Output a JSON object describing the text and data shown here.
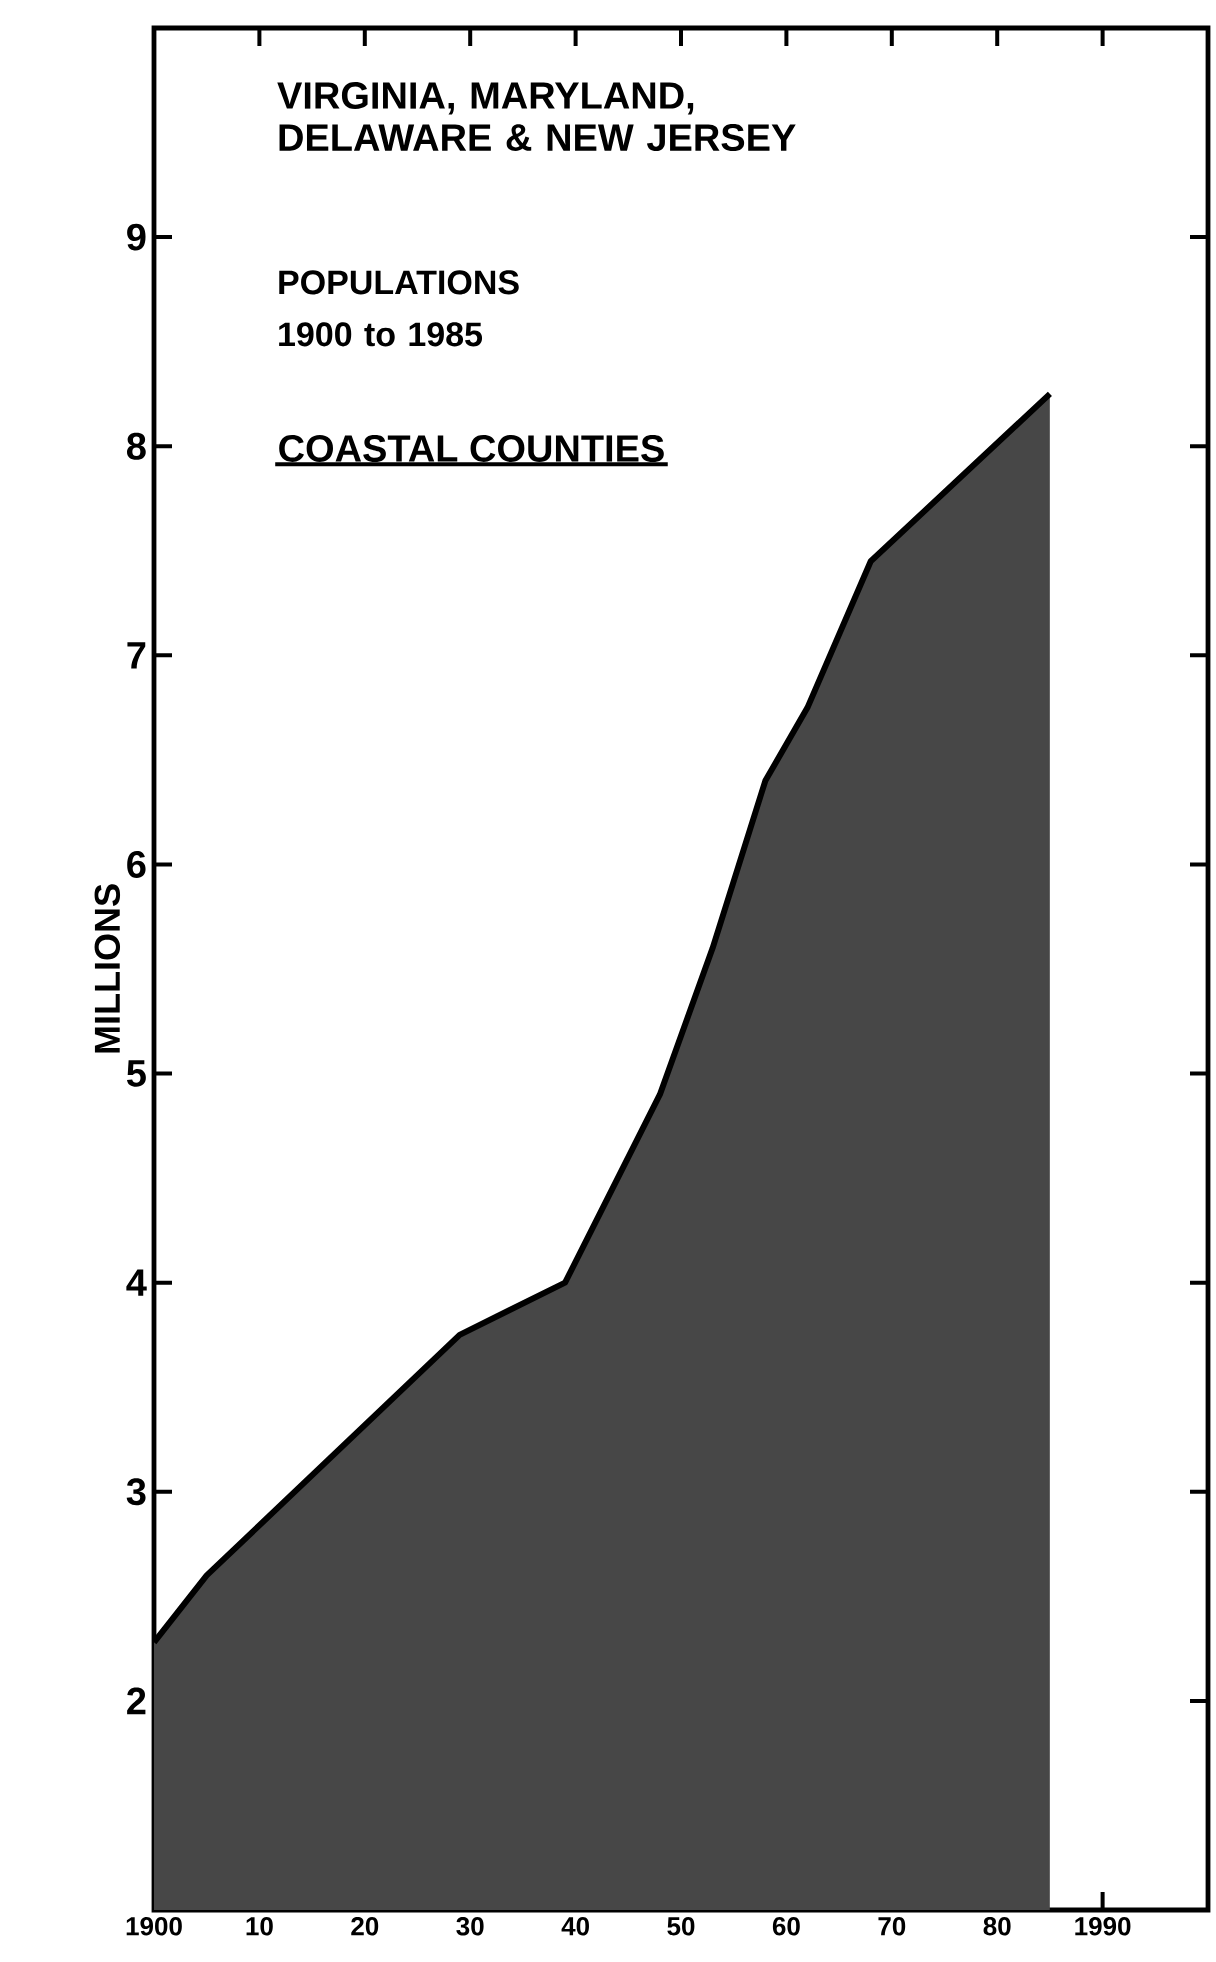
{
  "chart_data": {
    "type": "area",
    "title": "VIRGINIA, MARYLAND, DELAWARE & NEW JERSEY",
    "subtitle": "POPULATIONS 1900 to 1985",
    "annotations": [
      "COASTAL COUNTIES"
    ],
    "ylabel": "MILLIONS",
    "x": [
      1900,
      1905,
      1929,
      1939,
      1948,
      1953,
      1958,
      1962,
      1968,
      1985
    ],
    "series": [
      {
        "color": "#000000",
        "values": [
          2.28,
          2.6,
          3.75,
          4.0,
          4.9,
          5.6,
          6.4,
          6.75,
          7.45,
          8.25
        ]
      }
    ],
    "xlim": [
      1900,
      2000
    ],
    "ylim": [
      1,
      10
    ],
    "xticks": [
      1900,
      {
        "value": 1910,
        "label": "10"
      },
      {
        "value": 1920,
        "label": "20"
      },
      {
        "value": 1930,
        "label": "30"
      },
      {
        "value": 1940,
        "label": "40"
      },
      {
        "value": 1950,
        "label": "50"
      },
      {
        "value": 1960,
        "label": "60"
      },
      {
        "value": 1970,
        "label": "70"
      },
      {
        "value": 1980,
        "label": "80"
      },
      1990
    ],
    "yticks": [
      2,
      3,
      4,
      5,
      6,
      7,
      8,
      9
    ],
    "grid": false
  }
}
